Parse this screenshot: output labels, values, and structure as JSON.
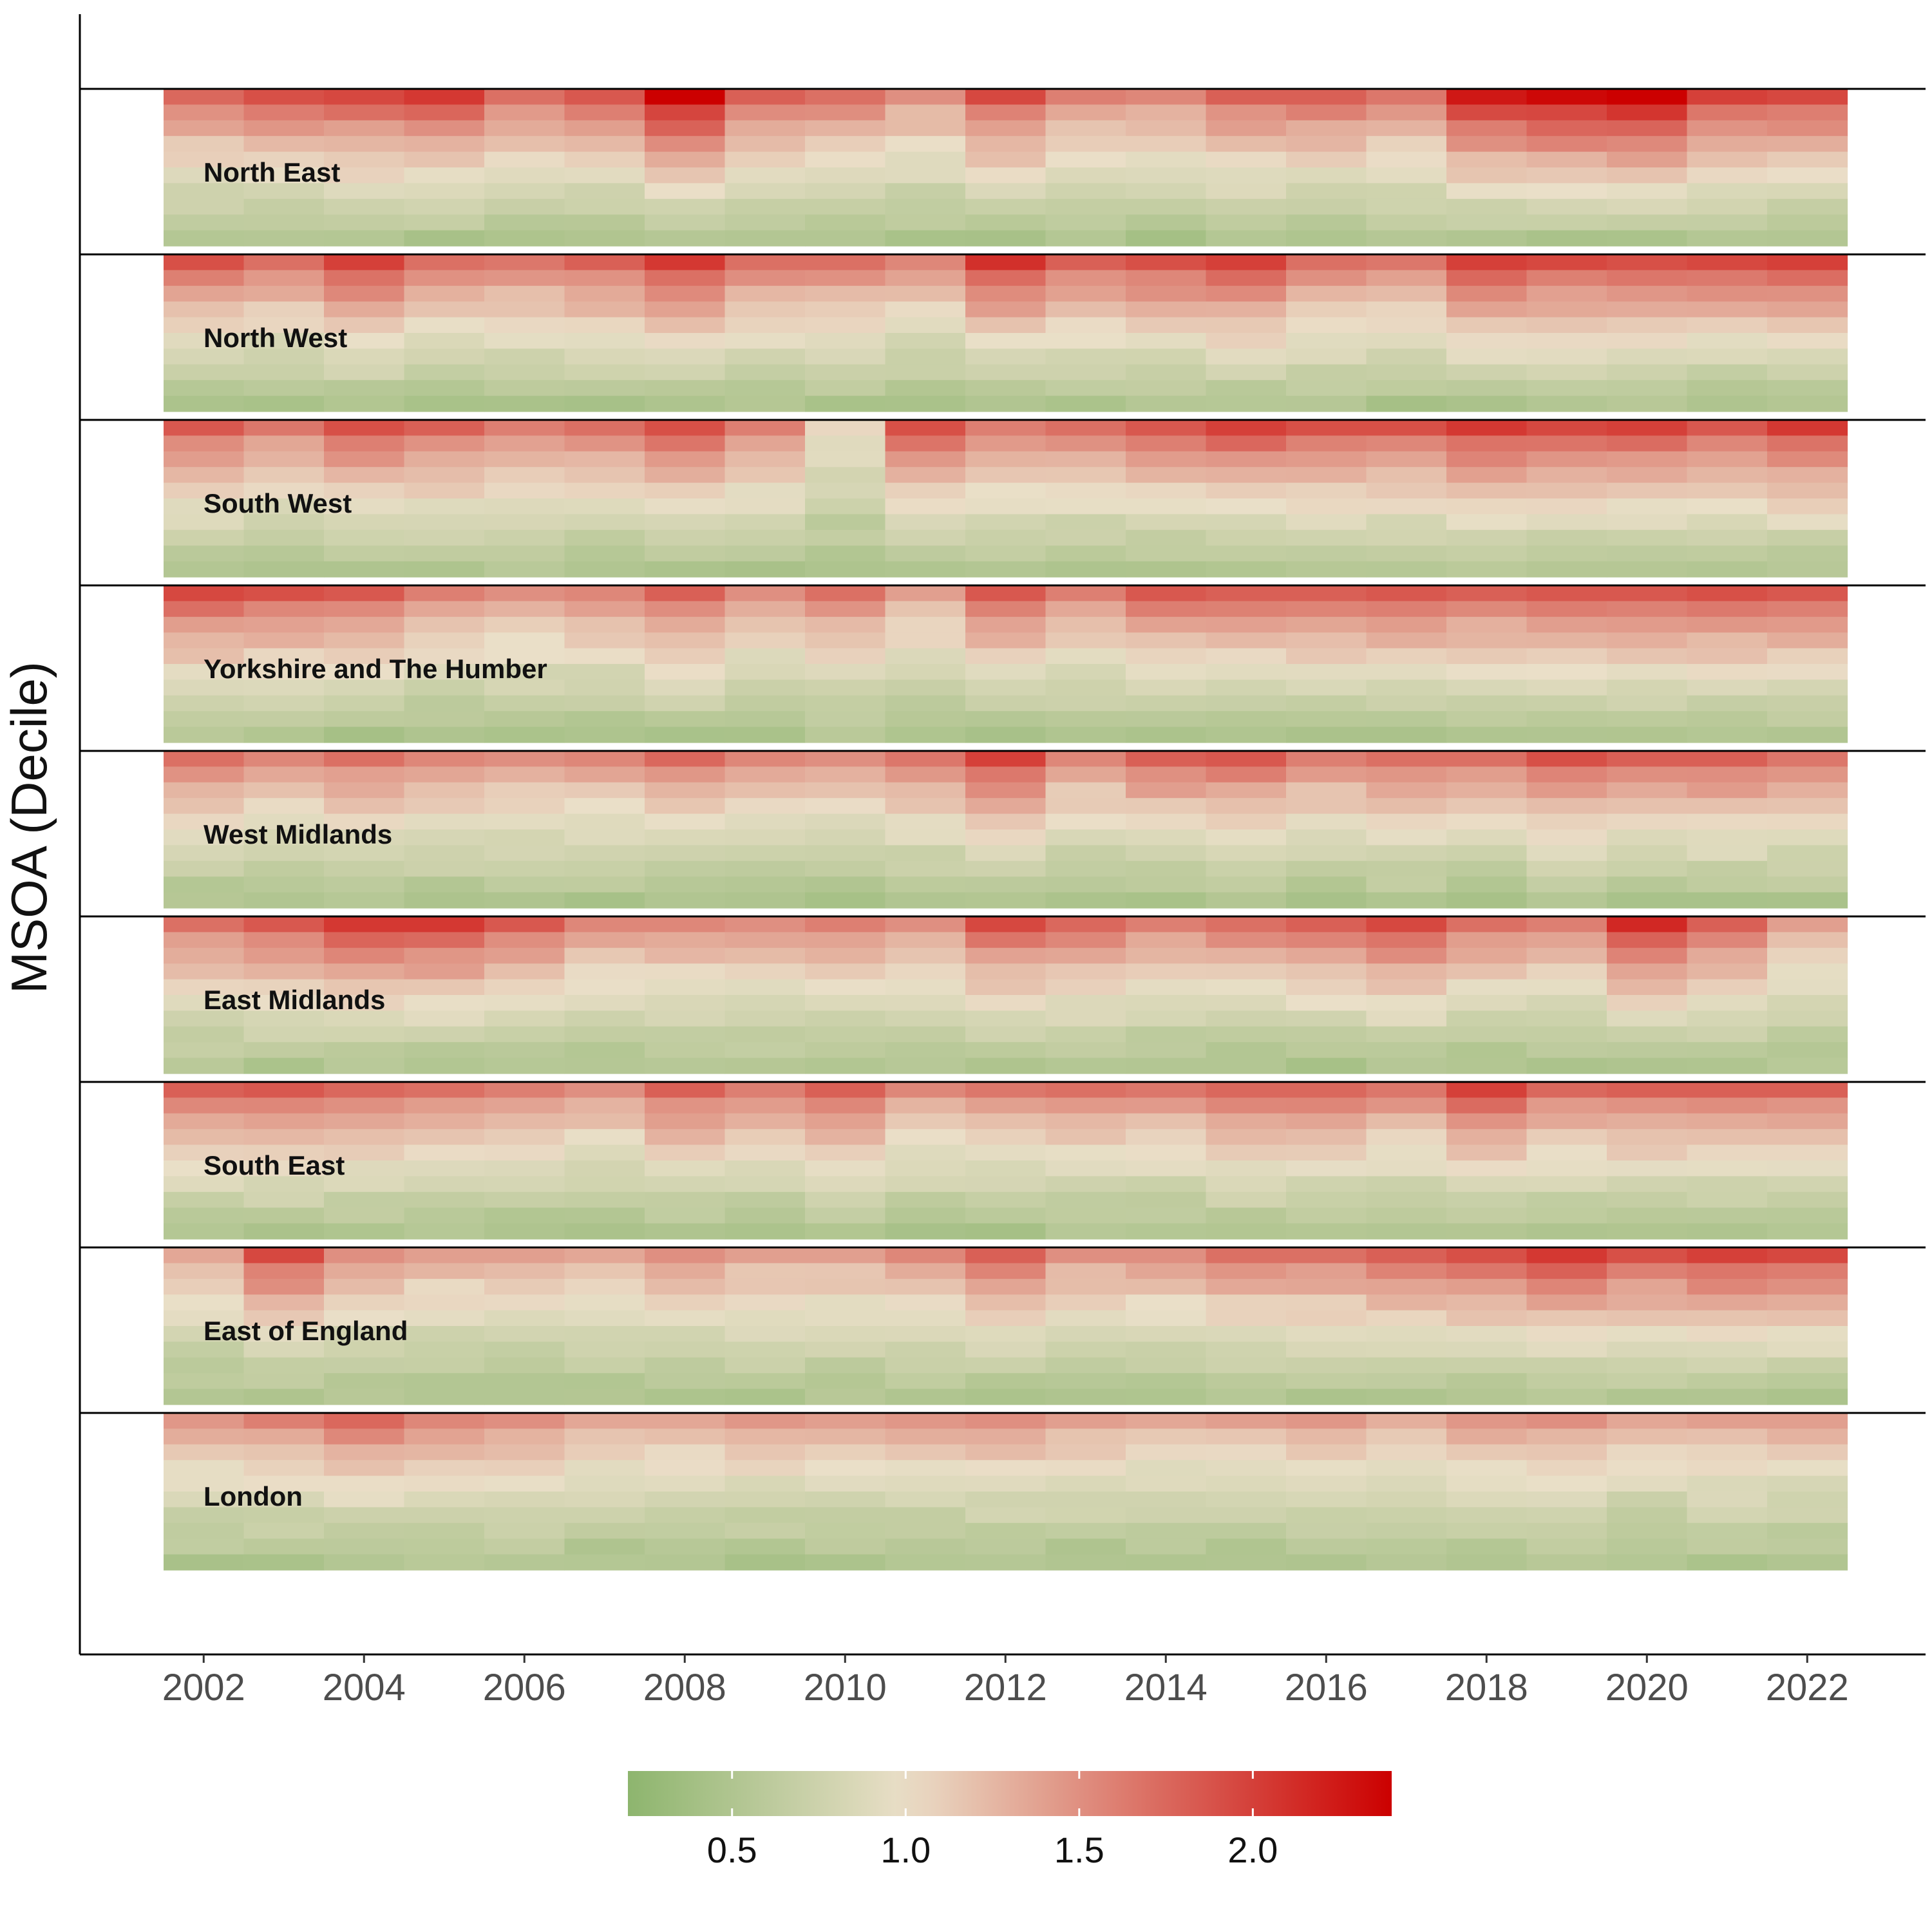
{
  "chart_data": {
    "type": "heatmap",
    "ylabel": "MSOA (Decile)",
    "xlabel": "",
    "x": [
      2002,
      2003,
      2004,
      2005,
      2006,
      2007,
      2008,
      2009,
      2010,
      2011,
      2012,
      2013,
      2014,
      2015,
      2016,
      2017,
      2018,
      2019,
      2020,
      2021,
      2022
    ],
    "x_tick_labels": [
      "2002",
      "2004",
      "2006",
      "2008",
      "2010",
      "2012",
      "2014",
      "2016",
      "2018",
      "2020",
      "2022"
    ],
    "deciles_per_region": 10,
    "regions": [
      {
        "name": "North East",
        "top_values": [
          1.75,
          1.9,
          1.95,
          2.05,
          1.7,
          1.85,
          2.4,
          1.8,
          1.7,
          1.5,
          1.95,
          1.6,
          1.55,
          1.8,
          1.8,
          1.65,
          2.25,
          2.35,
          2.4,
          2.0,
          1.95
        ]
      },
      {
        "name": "North West",
        "top_values": [
          1.9,
          1.7,
          2.0,
          1.7,
          1.65,
          1.8,
          2.05,
          1.7,
          1.7,
          1.55,
          2.1,
          1.8,
          1.9,
          2.0,
          1.7,
          1.65,
          2.0,
          1.95,
          1.9,
          1.95,
          2.0
        ]
      },
      {
        "name": "South West",
        "top_values": [
          1.85,
          1.65,
          1.9,
          1.8,
          1.6,
          1.7,
          1.9,
          1.6,
          1.05,
          1.9,
          1.6,
          1.7,
          1.85,
          2.0,
          1.9,
          1.9,
          2.05,
          1.95,
          2.0,
          1.85,
          2.05
        ]
      },
      {
        "name": "Yorkshire and The Humber",
        "top_values": [
          1.95,
          1.9,
          1.85,
          1.6,
          1.5,
          1.55,
          1.8,
          1.5,
          1.7,
          1.4,
          1.85,
          1.6,
          1.85,
          1.8,
          1.8,
          1.85,
          1.8,
          1.85,
          1.85,
          1.9,
          1.85
        ]
      },
      {
        "name": "West Midlands",
        "top_values": [
          1.7,
          1.55,
          1.7,
          1.55,
          1.5,
          1.55,
          1.75,
          1.55,
          1.5,
          1.65,
          2.0,
          1.55,
          1.8,
          1.85,
          1.6,
          1.7,
          1.7,
          1.9,
          1.8,
          1.8,
          1.65
        ]
      },
      {
        "name": "East Midlands",
        "top_values": [
          1.7,
          1.85,
          2.05,
          2.05,
          1.85,
          1.55,
          1.55,
          1.5,
          1.6,
          1.5,
          1.95,
          1.75,
          1.6,
          1.7,
          1.8,
          1.95,
          1.7,
          1.6,
          2.15,
          1.8,
          1.4
        ]
      },
      {
        "name": "South East",
        "top_values": [
          1.8,
          1.85,
          1.75,
          1.7,
          1.6,
          1.5,
          1.8,
          1.6,
          1.8,
          1.55,
          1.65,
          1.7,
          1.65,
          1.75,
          1.75,
          1.65,
          2.0,
          1.75,
          1.8,
          1.8,
          1.8
        ]
      },
      {
        "name": "East of England",
        "top_values": [
          1.35,
          1.95,
          1.5,
          1.4,
          1.4,
          1.35,
          1.5,
          1.4,
          1.4,
          1.55,
          1.8,
          1.5,
          1.5,
          1.7,
          1.7,
          1.8,
          1.9,
          2.05,
          1.9,
          2.0,
          1.95
        ]
      },
      {
        "name": "London",
        "top_values": [
          1.45,
          1.6,
          1.75,
          1.55,
          1.5,
          1.35,
          1.35,
          1.45,
          1.4,
          1.45,
          1.5,
          1.4,
          1.35,
          1.4,
          1.45,
          1.3,
          1.45,
          1.5,
          1.35,
          1.4,
          1.4
        ]
      }
    ],
    "color_scale": {
      "min": 0.2,
      "mid": 1.0,
      "max": 2.4,
      "low_color": "#8db56e",
      "mid_color": "#eadfc8",
      "high_color": "#cc0000",
      "ticks": [
        0.5,
        1.0,
        1.5,
        2.0
      ],
      "tick_labels": [
        "0.5",
        "1.0",
        "1.5",
        "2.0"
      ]
    },
    "legend_position": "bottom",
    "grid": false
  }
}
